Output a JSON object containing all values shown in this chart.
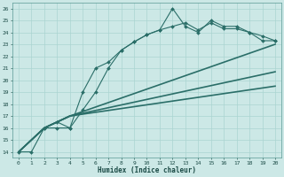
{
  "background_color": "#cce8e6",
  "grid_color": "#aad4d1",
  "line_color": "#2a6e68",
  "xlabel": "Humidex (Indice chaleur)",
  "xlim": [
    -0.5,
    20.5
  ],
  "ylim": [
    13.5,
    26.5
  ],
  "xticks": [
    0,
    1,
    2,
    3,
    4,
    5,
    6,
    7,
    8,
    9,
    10,
    11,
    12,
    13,
    14,
    15,
    16,
    17,
    18,
    19,
    20
  ],
  "yticks": [
    14,
    15,
    16,
    17,
    18,
    19,
    20,
    21,
    22,
    23,
    24,
    25,
    26
  ],
  "lines": [
    {
      "x": [
        0,
        1,
        2,
        3,
        4,
        5,
        6,
        7,
        8,
        9,
        10,
        11,
        12,
        13,
        14,
        15,
        16,
        17,
        18,
        19,
        20
      ],
      "y": [
        14,
        14,
        16,
        16,
        16,
        19,
        21,
        21.5,
        22.5,
        23.2,
        23.8,
        24.2,
        26,
        24.5,
        24,
        25,
        24.5,
        24.5,
        24,
        23.3,
        23.3
      ],
      "marker": "D",
      "marker_size": 2.0,
      "linewidth": 0.8,
      "linestyle": "-"
    },
    {
      "x": [
        2,
        3,
        4,
        5,
        6,
        7,
        8,
        9,
        10,
        11,
        12,
        13,
        14,
        15,
        16,
        17,
        18,
        19,
        20
      ],
      "y": [
        16,
        16.5,
        16,
        17.5,
        19,
        21,
        22.5,
        23.2,
        23.8,
        24.2,
        24.5,
        24.8,
        24.2,
        24.8,
        24.3,
        24.3,
        24.0,
        23.7,
        23.3
      ],
      "marker": "D",
      "marker_size": 2.0,
      "linewidth": 0.8,
      "linestyle": "-"
    },
    {
      "x": [
        0,
        2,
        3,
        4,
        20
      ],
      "y": [
        14,
        16,
        16.5,
        17,
        23.0
      ],
      "marker": null,
      "marker_size": 0,
      "linewidth": 1.2,
      "linestyle": "-"
    },
    {
      "x": [
        0,
        2,
        3,
        4,
        20
      ],
      "y": [
        14,
        16,
        16.5,
        17,
        20.7
      ],
      "marker": null,
      "marker_size": 0,
      "linewidth": 1.2,
      "linestyle": "-"
    },
    {
      "x": [
        0,
        2,
        3,
        4,
        20
      ],
      "y": [
        14,
        16,
        16.5,
        17,
        19.5
      ],
      "marker": null,
      "marker_size": 0,
      "linewidth": 1.2,
      "linestyle": "-"
    }
  ]
}
